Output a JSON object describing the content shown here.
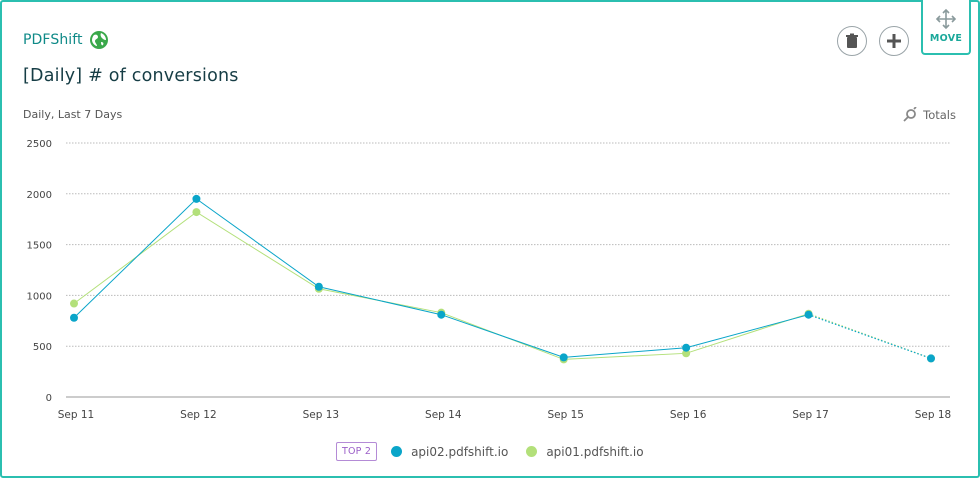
{
  "header": {
    "brand": "PDFShift",
    "title": "[Daily] # of conversions",
    "subtitle": "Daily, Last 7 Days",
    "totals_label": "Totals",
    "move_label": "MOVE"
  },
  "colors": {
    "accent": "#2bbfb0",
    "series_api02": "#0aa5c9",
    "series_api01": "#b3e07a"
  },
  "legend": {
    "badge": "TOP 2"
  },
  "chart_data": {
    "type": "line",
    "title": "",
    "xlabel": "",
    "ylabel": "",
    "ylim": [
      0,
      2500
    ],
    "yticks": [
      "0",
      "500",
      "1000",
      "1500",
      "2000",
      "2500"
    ],
    "categories": [
      "Sep 11",
      "Sep 12",
      "Sep 13",
      "Sep 14",
      "Sep 15",
      "Sep 16",
      "Sep 17",
      "Sep 18"
    ],
    "grid": true,
    "legend_position": "bottom",
    "series": [
      {
        "name": "api02.pdfshift.io",
        "values": [
          780,
          1950,
          1085,
          810,
          390,
          485,
          810,
          380
        ],
        "dotted_last_segment": true
      },
      {
        "name": "api01.pdfshift.io",
        "values": [
          920,
          1820,
          1065,
          830,
          370,
          430,
          820,
          380
        ],
        "dotted_last_segment": true
      }
    ]
  }
}
